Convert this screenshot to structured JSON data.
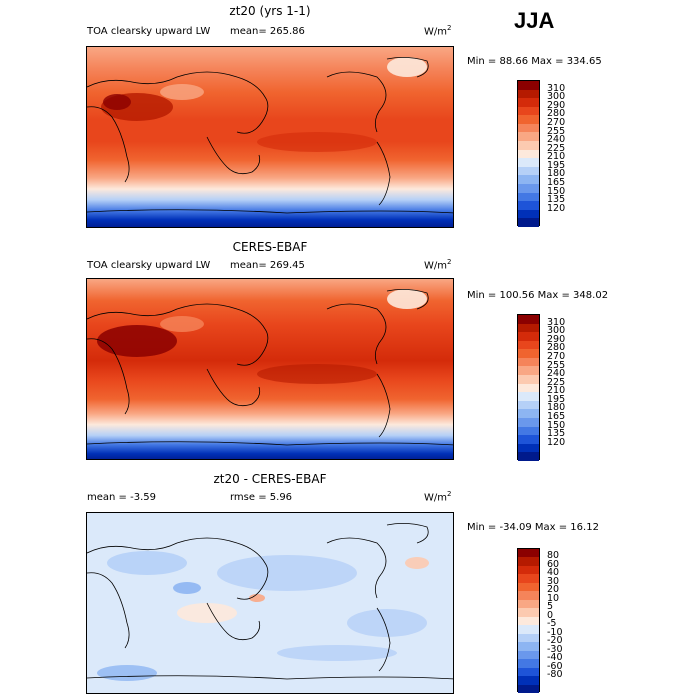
{
  "season": "JJA",
  "units_base": "W/m",
  "units_exp": "2",
  "panels": [
    {
      "title": "zt20 (yrs 1-1)",
      "left_label": "TOA clearsky upward LW",
      "stat1": "mean= 265.86",
      "stat2": "",
      "minmax": "Min =  88.66 Max = 334.65"
    },
    {
      "title": "CERES-EBAF",
      "left_label": "TOA clearsky upward LW",
      "stat1": "mean= 269.45",
      "stat2": "",
      "minmax": "Min = 100.56 Max = 348.02"
    },
    {
      "title": "zt20 - CERES-EBAF",
      "left_label": "",
      "stat1": "mean =  -3.59",
      "stat2": "rmse =   5.96",
      "minmax": "Min = -34.09 Max =  16.12"
    }
  ],
  "colorbars": {
    "field": {
      "labels": [
        "310",
        "300",
        "290",
        "280",
        "270",
        "255",
        "240",
        "225",
        "210",
        "195",
        "180",
        "165",
        "150",
        "135",
        "120"
      ],
      "colors": [
        "#8b0000",
        "#b51a00",
        "#d42b0a",
        "#e8461c",
        "#f0642f",
        "#f5845a",
        "#f9a784",
        "#fccab0",
        "#fde9dc",
        "#dbe9fa",
        "#b5d0f7",
        "#8db5f2",
        "#6a98ec",
        "#4378e4",
        "#1e54d8",
        "#0030b8",
        "#001a8c"
      ]
    },
    "diff": {
      "labels": [
        "80",
        "60",
        "40",
        "30",
        "20",
        "10",
        "5",
        "0",
        "-5",
        "-10",
        "-20",
        "-30",
        "-40",
        "-60",
        "-80"
      ],
      "colors": [
        "#8b0000",
        "#b51a00",
        "#d42b0a",
        "#e8461c",
        "#f0642f",
        "#f5845a",
        "#f9a784",
        "#fccab0",
        "#fde9dc",
        "#dbe9fa",
        "#b5d0f7",
        "#8db5f2",
        "#6a98ec",
        "#4378e4",
        "#1e54d8",
        "#0030b8",
        "#001a8c"
      ]
    }
  }
}
